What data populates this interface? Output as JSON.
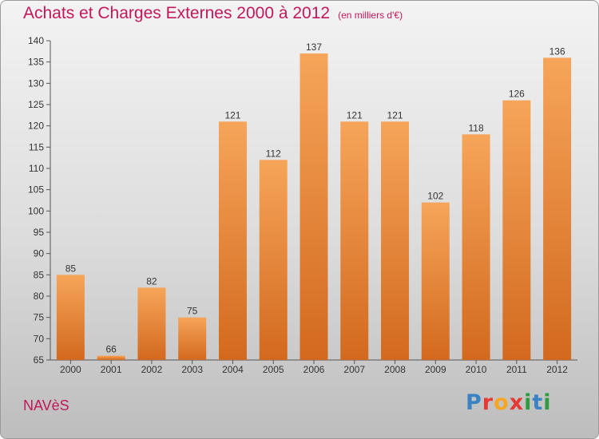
{
  "title": "Achats et Charges Externes 2000 à 2012",
  "unit_note": "(en milliers d'€)",
  "commune": "NAVèS",
  "brand": "Proxiti",
  "colors": {
    "title": "#c2185b",
    "bar_top": "#f6a55a",
    "bar_bottom": "#d2691e"
  },
  "chart_data": {
    "type": "bar",
    "title": "Achats et Charges Externes 2000 à 2012",
    "subtitle": "(en milliers d'€)",
    "categories": [
      "2000",
      "2001",
      "2002",
      "2003",
      "2004",
      "2005",
      "2006",
      "2007",
      "2008",
      "2009",
      "2010",
      "2011",
      "2012"
    ],
    "values": [
      85,
      66,
      82,
      75,
      121,
      112,
      137,
      121,
      121,
      102,
      118,
      126,
      136
    ],
    "ylim": [
      65,
      140
    ],
    "yticks": [
      65,
      70,
      75,
      80,
      85,
      90,
      95,
      100,
      105,
      110,
      115,
      120,
      125,
      130,
      135,
      140
    ],
    "grid": false,
    "data_labels": true
  }
}
